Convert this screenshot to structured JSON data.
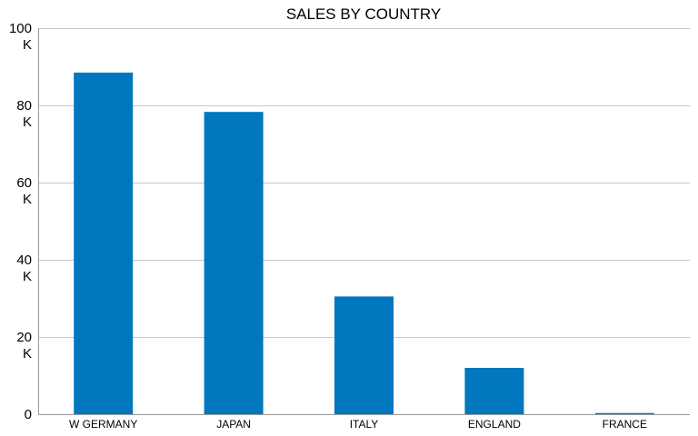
{
  "chart_data": {
    "type": "bar",
    "title": "SALES BY COUNTRY",
    "categories": [
      "W GERMANY",
      "JAPAN",
      "ITALY",
      "ENGLAND",
      "FRANCE"
    ],
    "values": [
      88500,
      78300,
      30500,
      12000,
      300
    ],
    "ylim": [
      0,
      100000
    ],
    "yticks": [
      {
        "value": 0,
        "label": "0",
        "unit": ""
      },
      {
        "value": 20000,
        "label": "20",
        "unit": "K"
      },
      {
        "value": 40000,
        "label": "40",
        "unit": "K"
      },
      {
        "value": 60000,
        "label": "60",
        "unit": "K"
      },
      {
        "value": 80000,
        "label": "80",
        "unit": "K"
      },
      {
        "value": 100000,
        "label": "100",
        "unit": "K"
      }
    ],
    "grid": true,
    "colors": {
      "bar": "#0077bf",
      "grid": "#c8c8c8",
      "axis": "#9a9a9a"
    }
  }
}
